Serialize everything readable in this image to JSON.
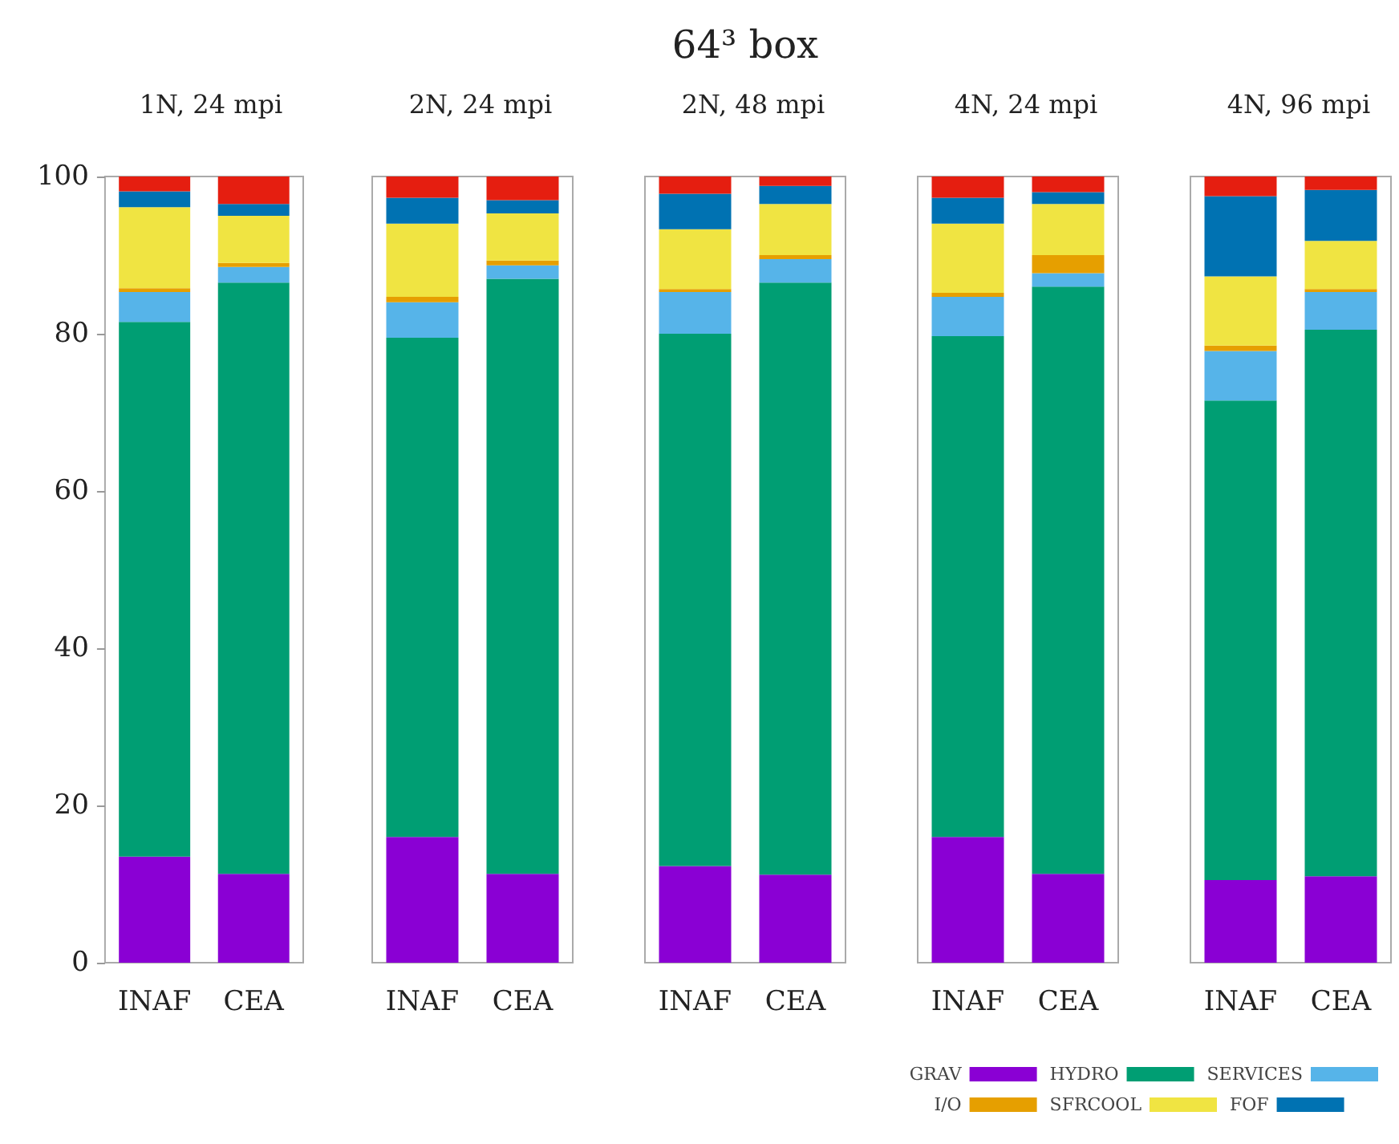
{
  "chart_data": [
    {
      "type": "bar",
      "subtitle": "1N, 24 mpi",
      "categories": [
        "INAF",
        "CEA"
      ],
      "stacked": true,
      "ylim": [
        0,
        100
      ],
      "yticks": [
        0,
        20,
        40,
        60,
        80,
        100
      ],
      "grid": false,
      "series": [
        {
          "color": "#8a00d4",
          "values": [
            13.5,
            11.3
          ]
        },
        {
          "color": "#009e73",
          "values": [
            68,
            75.2
          ]
        },
        {
          "color": "#56b4e9",
          "values": [
            3.8,
            2
          ]
        },
        {
          "color": "#e69f00",
          "values": [
            0.5,
            0.5
          ]
        },
        {
          "color": "#f0e442",
          "values": [
            10.3,
            6
          ]
        },
        {
          "color": "#0072b2",
          "values": [
            2,
            1.5
          ]
        },
        {
          "color": "#e51e10",
          "values": [
            1.9,
            3.5
          ]
        }
      ]
    },
    {
      "type": "bar",
      "subtitle": "2N, 24 mpi",
      "categories": [
        "INAF",
        "CEA"
      ],
      "stacked": true,
      "ylim": [
        0,
        100
      ],
      "yticks": [
        0,
        20,
        40,
        60,
        80,
        100
      ],
      "tick_labels": "x",
      "grid": false,
      "series": [
        {
          "color": "#8a00d4",
          "values": [
            16,
            11.3
          ]
        },
        {
          "color": "#009e73",
          "values": [
            63.5,
            75.7
          ]
        },
        {
          "color": "#56b4e9",
          "values": [
            4.5,
            1.7
          ]
        },
        {
          "color": "#e69f00",
          "values": [
            0.7,
            0.6
          ]
        },
        {
          "color": "#f0e442",
          "values": [
            9.3,
            6
          ]
        },
        {
          "color": "#0072b2",
          "values": [
            3.3,
            1.7
          ]
        },
        {
          "color": "#e51e10",
          "values": [
            2.7,
            3
          ]
        }
      ]
    },
    {
      "type": "bar",
      "title": "64³ box",
      "subtitle": "2N, 48 mpi",
      "categories": [
        "INAF",
        "CEA"
      ],
      "stacked": true,
      "ylim": [
        0,
        100
      ],
      "yticks": [
        0,
        20,
        40,
        60,
        80,
        100
      ],
      "tick_labels": "x",
      "grid": false,
      "series": [
        {
          "color": "#8a00d4",
          "values": [
            12.3,
            11.2
          ]
        },
        {
          "color": "#009e73",
          "values": [
            67.7,
            75.3
          ]
        },
        {
          "color": "#56b4e9",
          "values": [
            5.3,
            3
          ]
        },
        {
          "color": "#e69f00",
          "values": [
            0.4,
            0.5
          ]
        },
        {
          "color": "#f0e442",
          "values": [
            7.6,
            6.5
          ]
        },
        {
          "color": "#0072b2",
          "values": [
            4.5,
            2.3
          ]
        },
        {
          "color": "#e51e10",
          "values": [
            2.2,
            1.2
          ]
        }
      ]
    },
    {
      "type": "bar",
      "subtitle": "4N, 24 mpi",
      "categories": [
        "INAF",
        "CEA"
      ],
      "stacked": true,
      "ylim": [
        0,
        100
      ],
      "yticks": [
        0,
        20,
        40,
        60,
        80,
        100
      ],
      "tick_labels": "x",
      "grid": false,
      "series": [
        {
          "color": "#8a00d4",
          "values": [
            16,
            11.3
          ]
        },
        {
          "color": "#009e73",
          "values": [
            63.7,
            74.7
          ]
        },
        {
          "color": "#56b4e9",
          "values": [
            5,
            1.7
          ]
        },
        {
          "color": "#e69f00",
          "values": [
            0.5,
            2.3
          ]
        },
        {
          "color": "#f0e442",
          "values": [
            8.8,
            6.5
          ]
        },
        {
          "color": "#0072b2",
          "values": [
            3.3,
            1.5
          ]
        },
        {
          "color": "#e51e10",
          "values": [
            2.7,
            2
          ]
        }
      ]
    },
    {
      "type": "bar",
      "subtitle": "4N, 96 mpi",
      "categories": [
        "INAF",
        "CEA"
      ],
      "stacked": true,
      "ylim": [
        0,
        100
      ],
      "yticks": [
        0,
        20,
        40,
        60,
        80,
        100
      ],
      "tick_labels": "x",
      "grid": false,
      "legend": "bottom left",
      "series": [
        {
          "name": "GRAV",
          "color": "#8a00d4",
          "values": [
            10.5,
            11
          ]
        },
        {
          "name": "HYDRO",
          "color": "#009e73",
          "values": [
            61,
            69.5
          ]
        },
        {
          "name": "SERVICES",
          "color": "#56b4e9",
          "values": [
            6.3,
            4.8
          ]
        },
        {
          "name": "I/O",
          "color": "#e69f00",
          "values": [
            0.7,
            0.4
          ]
        },
        {
          "name": "SFRCOOL",
          "color": "#f0e442",
          "values": [
            8.8,
            6.1
          ]
        },
        {
          "name": "FOF",
          "color": "#0072b2",
          "values": [
            10.2,
            6.5
          ]
        },
        {
          "color": "#e51e10",
          "values": [
            2.5,
            1.7
          ]
        }
      ]
    }
  ]
}
